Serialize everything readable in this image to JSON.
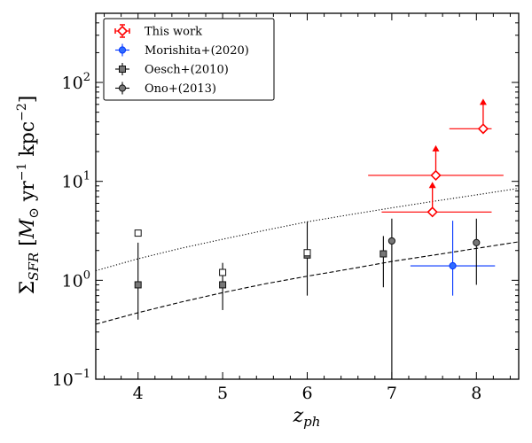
{
  "chart_data": {
    "type": "scatter",
    "xlabel": "z_ph",
    "xlabel_main": "z",
    "xlabel_sub": "ph",
    "ylabel": "Σ_SFR [M_⊙ yr^-1 kpc^-2]",
    "ylabel_parts": {
      "sigma": "Σ",
      "sub": "SFR",
      "open": " [",
      "msun": "M",
      "msun_sub": "⊙",
      "yr": " yr",
      "yr_exp": "−1",
      "kpc": " kpc",
      "kpc_exp": "−2",
      "close": "]"
    },
    "xlim": [
      3.5,
      8.5
    ],
    "ylim": [
      0.1,
      500
    ],
    "yscale": "log",
    "xticks": [
      {
        "value": 4,
        "label": "4"
      },
      {
        "value": 5,
        "label": "5"
      },
      {
        "value": 6,
        "label": "6"
      },
      {
        "value": 7,
        "label": "7"
      },
      {
        "value": 8,
        "label": "8"
      }
    ],
    "yticks": [
      {
        "value": 0.1,
        "base": "10",
        "exp": "−1"
      },
      {
        "value": 1,
        "base": "10",
        "exp": "0"
      },
      {
        "value": 10,
        "base": "10",
        "exp": "1"
      },
      {
        "value": 100,
        "base": "10",
        "exp": "2"
      }
    ],
    "legend": {
      "position": "top-left",
      "entries": [
        {
          "label": "This work",
          "color": "#ff0000",
          "marker": "diamond-open"
        },
        {
          "label": "Morishita+(2020)",
          "color": "#0033ff",
          "marker": "circle-filled"
        },
        {
          "label": "Oesch+(2010)",
          "color": "#333333",
          "marker": "square-gray"
        },
        {
          "label": "Ono+(2013)",
          "color": "#333333",
          "marker": "circle-gray"
        }
      ]
    },
    "series": [
      {
        "name": "This work",
        "color": "#ff0000",
        "marker": "diamond-open",
        "points": [
          {
            "x": 7.52,
            "y": 11.5,
            "xerr": [
              0.8,
              0.8
            ],
            "lower_limit": true
          },
          {
            "x": 7.48,
            "y": 4.9,
            "xerr": [
              0.6,
              0.7
            ],
            "lower_limit": true
          },
          {
            "x": 8.08,
            "y": 34,
            "xerr": [
              0.4,
              0.1
            ],
            "lower_limit": true
          }
        ]
      },
      {
        "name": "Morishita+(2020)",
        "color": "#0033ff",
        "marker": "circle-filled",
        "points": [
          {
            "x": 7.72,
            "y": 1.4,
            "xerr": [
              0.5,
              0.5
            ],
            "yerr": [
              0.7,
              4.0
            ]
          }
        ]
      },
      {
        "name": "Oesch+(2010)",
        "color": "#333333",
        "marker": "square-gray",
        "points": [
          {
            "x": 4.0,
            "y": 0.9,
            "yerr": [
              0.4,
              2.4
            ]
          },
          {
            "x": 5.0,
            "y": 0.9,
            "yerr": [
              0.5,
              1.5
            ]
          },
          {
            "x": 6.0,
            "y": 1.8,
            "yerr": [
              0.7,
              3.9
            ]
          },
          {
            "x": 6.9,
            "y": 1.85,
            "yerr": [
              0.85,
              2.8
            ]
          }
        ]
      },
      {
        "name": "Oesch+(2010) open",
        "color": "#333333",
        "marker": "square-open",
        "points": [
          {
            "x": 4.0,
            "y": 3.0
          },
          {
            "x": 5.0,
            "y": 1.2
          },
          {
            "x": 6.0,
            "y": 1.9
          }
        ]
      },
      {
        "name": "Ono+(2013)",
        "color": "#333333",
        "marker": "circle-gray",
        "points": [
          {
            "x": 7.0,
            "y": 2.5,
            "yerr": [
              0.1,
              4.2
            ]
          },
          {
            "x": 8.0,
            "y": 2.4,
            "yerr": [
              0.9,
              4.2
            ]
          }
        ]
      }
    ],
    "curves": [
      {
        "name": "dotted curve",
        "style": "dotted",
        "color": "#000000",
        "x": [
          3.5,
          4.0,
          4.5,
          5.0,
          5.5,
          6.0,
          6.5,
          7.0,
          7.5,
          8.0,
          8.5
        ],
        "y": [
          1.25,
          1.65,
          2.1,
          2.6,
          3.2,
          3.9,
          4.6,
          5.4,
          6.3,
          7.3,
          8.5
        ]
      },
      {
        "name": "dashed curve",
        "style": "dashed",
        "color": "#000000",
        "x": [
          3.5,
          4.0,
          4.5,
          5.0,
          5.5,
          6.0,
          6.5,
          7.0,
          7.5,
          8.0,
          8.5
        ],
        "y": [
          0.36,
          0.47,
          0.6,
          0.75,
          0.92,
          1.1,
          1.3,
          1.55,
          1.8,
          2.1,
          2.45
        ]
      }
    ]
  }
}
